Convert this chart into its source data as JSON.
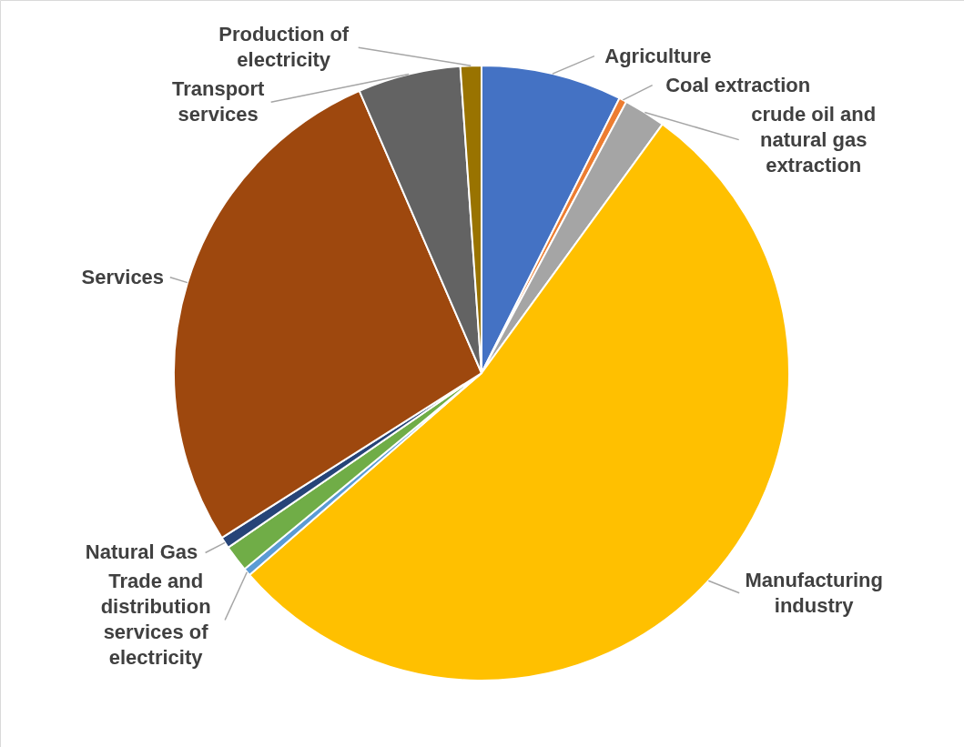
{
  "chart_data": {
    "type": "pie",
    "categories": [
      "Agriculture",
      "Coal extraction",
      "crude oil and natural gas extraction",
      "Manufacturing industry",
      "Trade and distribution services of electricity",
      null,
      "Natural Gas",
      "Services",
      "Transport services",
      "Production of electricity"
    ],
    "values": [
      7.4,
      0.4,
      2.2,
      53.6,
      0.4,
      1.4,
      0.6,
      27.5,
      5.4,
      1.1
    ],
    "colors": [
      "#4472c4",
      "#ed7d31",
      "#a5a5a5",
      "#ffc000",
      "#5b9bd5",
      "#70ad47",
      "#264478",
      "#9e480e",
      "#636363",
      "#997300"
    ]
  }
}
